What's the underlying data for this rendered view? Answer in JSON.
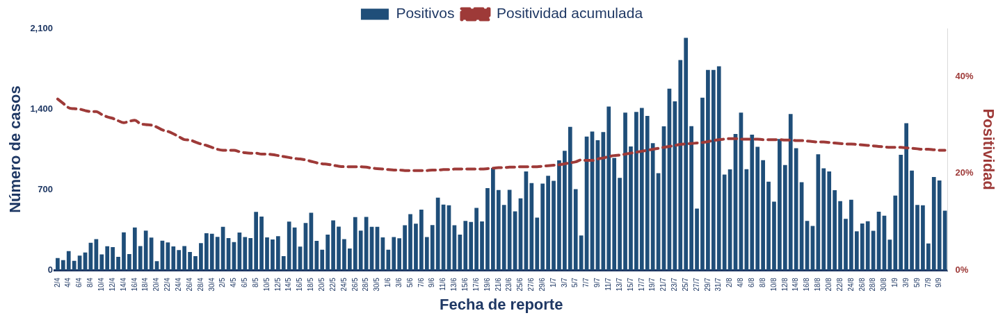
{
  "chart_data": {
    "type": "bar",
    "xlabel": "Fecha de reporte",
    "ylabel": "Número de casos",
    "y2label": "Positividad",
    "legend": "top",
    "categories": [
      "2/4",
      null,
      "4/4",
      null,
      "6/4",
      null,
      "8/4",
      null,
      "10/4",
      null,
      "12/4",
      null,
      "14/4",
      null,
      "16/4",
      null,
      "18/4",
      null,
      "20/4",
      null,
      "22/4",
      null,
      "24/4",
      null,
      "26/4",
      null,
      "28/4",
      null,
      "30/4",
      null,
      "2/5",
      null,
      "4/5",
      null,
      "6/5",
      null,
      "8/5",
      null,
      "10/5",
      null,
      "12/5",
      null,
      "14/5",
      null,
      "16/5",
      null,
      "18/5",
      null,
      "20/5",
      null,
      "22/5",
      null,
      "24/5",
      null,
      "26/5",
      null,
      "28/5",
      null,
      "30/5",
      null,
      "1/6",
      null,
      "3/6",
      null,
      "5/6",
      null,
      "7/6",
      null,
      "9/6",
      null,
      "11/6",
      null,
      "13/6",
      null,
      "15/6",
      null,
      "17/6",
      null,
      "19/6",
      null,
      "21/6",
      null,
      "23/6",
      null,
      "25/6",
      null,
      "27/6",
      null,
      "29/6",
      null,
      "1/7",
      null,
      "3/7",
      null,
      "5/7",
      null,
      "7/7",
      null,
      "9/7",
      null,
      "11/7",
      null,
      "13/7",
      null,
      "15/7",
      null,
      "17/7",
      null,
      "19/7",
      null,
      "21/7",
      null,
      "23/7",
      null,
      "25/7",
      null,
      "27/7",
      null,
      "29/7",
      null,
      "31/7",
      null,
      "2/8",
      null,
      "4/8",
      null,
      "6/8",
      null,
      "8/8",
      null,
      "10/8",
      null,
      "12/8",
      null,
      "14/8",
      null,
      "16/8",
      null,
      "18/8",
      null,
      "20/8",
      null,
      "22/8",
      null,
      "24/8",
      null,
      "26/8",
      null,
      "28/8",
      null,
      "30/8",
      null,
      "1/9",
      null,
      "3/9",
      null,
      "5/9",
      null,
      "7/9",
      null,
      "9/9",
      null
    ],
    "series": [
      {
        "name": "Positivos",
        "color": "#1f4e79",
        "values": [
          105,
          87,
          165,
          81,
          126,
          153,
          237,
          270,
          136,
          208,
          200,
          116,
          328,
          140,
          370,
          209,
          343,
          283,
          78,
          256,
          240,
          206,
          175,
          209,
          157,
          122,
          235,
          320,
          316,
          289,
          376,
          279,
          244,
          326,
          287,
          279,
          506,
          465,
          285,
          266,
          295,
          122,
          421,
          370,
          204,
          409,
          498,
          254,
          178,
          308,
          432,
          378,
          270,
          188,
          461,
          343,
          463,
          376,
          376,
          285,
          178,
          287,
          277,
          390,
          487,
          403,
          525,
          287,
          392,
          630,
          570,
          563,
          390,
          308,
          427,
          419,
          541,
          423,
          712,
          888,
          696,
          566,
          698,
          510,
          623,
          857,
          756,
          456,
          752,
          820,
          776,
          954,
          1037,
          1245,
          704,
          301,
          1160,
          1204,
          1129,
          1200,
          1422,
          975,
          801,
          1369,
          1074,
          1375,
          1410,
          1340,
          1103,
          842,
          1249,
          1577,
          1467,
          1825,
          2019,
          1251,
          535,
          1498,
          1740,
          1740,
          1771,
          830,
          875,
          1183,
          1369,
          877,
          1177,
          1072,
          956,
          768,
          595,
          1140,
          913,
          1357,
          1059,
          764,
          427,
          384,
          1006,
          884,
          857,
          694,
          599,
          446,
          611,
          337,
          405,
          425,
          341,
          508,
          473,
          264,
          648,
          1002,
          1276,
          865,
          566,
          564,
          231,
          809,
          779,
          516
        ]
      },
      {
        "name": "Positividad acumulada",
        "type": "line",
        "axis": "y2",
        "color": "#9e3a38",
        "line_style": "dashed",
        "marker": "none",
        "values": [
          35.4,
          34.5,
          33.6,
          33.4,
          33.3,
          33.0,
          32.8,
          32.8,
          32.2,
          31.7,
          31.4,
          30.9,
          30.5,
          30.8,
          31.0,
          30.3,
          30.1,
          30.0,
          29.6,
          29.0,
          28.7,
          28.2,
          27.6,
          27.0,
          26.9,
          26.5,
          26.1,
          25.8,
          25.4,
          25.0,
          24.8,
          24.8,
          24.8,
          24.5,
          24.3,
          24.2,
          24.2,
          24.0,
          24.0,
          23.9,
          23.7,
          23.5,
          23.3,
          23.1,
          23.0,
          22.8,
          22.5,
          22.2,
          22.0,
          21.9,
          21.7,
          21.5,
          21.4,
          21.4,
          21.4,
          21.4,
          21.3,
          21.1,
          21.0,
          20.9,
          20.8,
          20.7,
          20.7,
          20.6,
          20.6,
          20.6,
          20.6,
          20.6,
          20.7,
          20.7,
          20.8,
          20.8,
          20.9,
          20.9,
          20.9,
          20.9,
          20.9,
          20.9,
          21.0,
          21.1,
          21.2,
          21.2,
          21.3,
          21.3,
          21.4,
          21.4,
          21.4,
          21.4,
          21.5,
          21.6,
          21.7,
          21.8,
          22.0,
          22.2,
          22.4,
          22.8,
          22.7,
          22.7,
          23.0,
          23.2,
          23.5,
          23.7,
          23.8,
          24.0,
          24.2,
          24.4,
          24.6,
          24.8,
          25.0,
          25.2,
          25.4,
          25.6,
          25.8,
          26.0,
          26.1,
          26.2,
          26.3,
          26.4,
          26.6,
          26.8,
          27.0,
          27.1,
          27.2,
          27.2,
          27.1,
          27.1,
          27.1,
          27.1,
          27.0,
          27.0,
          27.0,
          27.0,
          26.9,
          26.9,
          26.8,
          26.8,
          26.7,
          26.6,
          26.5,
          26.5,
          26.4,
          26.3,
          26.2,
          26.1,
          26.1,
          26.0,
          25.9,
          25.8,
          25.7,
          25.6,
          25.5,
          25.4,
          25.4,
          25.4,
          25.3,
          25.2,
          25.1,
          25.0,
          25.0,
          24.9,
          24.8,
          24.8
        ]
      }
    ],
    "ylim": [
      0,
      2100
    ],
    "yticks": [
      0,
      {
        "value": 700,
        "label": "700"
      },
      {
        "value": 1400,
        "label": "1,400"
      },
      {
        "value": 2100,
        "label": "2,100"
      }
    ],
    "y2lim": [
      0,
      50
    ],
    "y2ticks": [
      {
        "value": 0,
        "label": "0%"
      },
      {
        "value": 20,
        "label": "20%"
      },
      {
        "value": 40,
        "label": "40%"
      }
    ]
  }
}
